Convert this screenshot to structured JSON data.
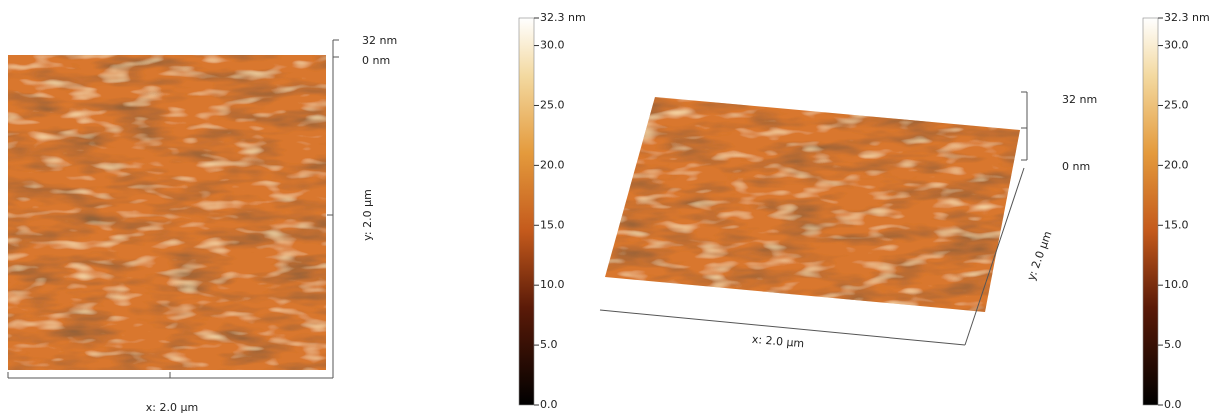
{
  "left_panel": {
    "z_top": "32 nm",
    "z_bottom": "0 nm",
    "y_label": "y: 2.0 µm",
    "x_label": "x: 2.0 µm"
  },
  "left_colorbar": {
    "ticks": [
      {
        "value": 32.3,
        "label": "32.3 nm"
      },
      {
        "value": 30,
        "label": "30.0"
      },
      {
        "value": 25,
        "label": "25.0"
      },
      {
        "value": 20,
        "label": "20.0"
      },
      {
        "value": 15,
        "label": "15.0"
      },
      {
        "value": 10,
        "label": "10.0"
      },
      {
        "value": 5,
        "label": "5.0"
      },
      {
        "value": 0,
        "label": "0.0"
      }
    ]
  },
  "right_panel": {
    "z_top": "32 nm",
    "z_bottom": "0 nm",
    "y_label": "y: 2.0 µm",
    "x_label": "x: 2.0 µm"
  },
  "right_colorbar": {
    "ticks": [
      {
        "value": 32.3,
        "label": "32.3 nm"
      },
      {
        "value": 30,
        "label": "30.0"
      },
      {
        "value": 25,
        "label": "25.0"
      },
      {
        "value": 20,
        "label": "20.0"
      },
      {
        "value": 15,
        "label": "15.0"
      },
      {
        "value": 10,
        "label": "10.0"
      },
      {
        "value": 5,
        "label": "5.0"
      },
      {
        "value": 0,
        "label": "0.0"
      }
    ]
  }
}
